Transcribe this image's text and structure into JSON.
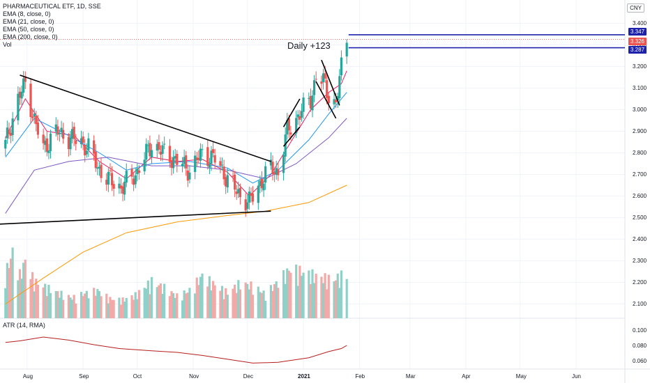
{
  "legend": {
    "title": "PHARMACEUTICAL ETF, 1D, SSE",
    "ema8": "EMA (8, close, 0)",
    "ema21": "EMA (21, close, 0)",
    "ema50": "EMA (50, close, 0)",
    "ema200": "EMA (200, close, 0)",
    "vol": "Vol"
  },
  "atr_label": "ATR (14, RMA)",
  "currency": "CNY",
  "annotation": "Daily +123",
  "price_tags": {
    "upper": "3.347",
    "current": "3.326",
    "lower": "3.287"
  },
  "colors": {
    "up": "#26a69a",
    "down": "#ef5350",
    "ema8": "#e91e63",
    "ema21": "#2196f3",
    "ema50": "#7e57c2",
    "ema200": "#ff9800",
    "atr": "#b71c1c",
    "hline": "#1e22aa"
  },
  "chart_data": {
    "type": "candlestick",
    "price_axis": [
      "3.400",
      "3.300",
      "3.200",
      "3.100",
      "3.000",
      "2.900",
      "2.800",
      "2.700",
      "2.600",
      "2.500",
      "2.400",
      "2.300",
      "2.200",
      "2.100"
    ],
    "atr_axis": [
      "0.100",
      "0.080",
      "0.060"
    ],
    "x_labels": [
      "Aug",
      "Sep",
      "Oct",
      "Nov",
      "Dec",
      "2021",
      "Feb",
      "Mar",
      "Apr",
      "May",
      "Jun"
    ],
    "price_range": [
      2.05,
      3.45
    ],
    "atr_range": [
      0.052,
      0.112
    ],
    "horizontal_levels": [
      3.347,
      3.287
    ],
    "trendlines": [
      {
        "from": [
          "2020-07-28",
          3.16
        ],
        "to": [
          "2020-12-14",
          2.76
        ]
      },
      {
        "from": [
          "2020-07-17",
          2.47
        ],
        "to": [
          "2020-12-14",
          2.53
        ]
      },
      {
        "from": [
          "2020-12-21",
          2.92
        ],
        "to": [
          "2020-12-30",
          3.05
        ]
      },
      {
        "from": [
          "2020-12-21",
          2.83
        ],
        "to": [
          "2020-12-30",
          2.92
        ]
      },
      {
        "from": [
          "2021-01-11",
          3.23
        ],
        "to": [
          "2021-01-21",
          3.02
        ]
      },
      {
        "from": [
          "2021-01-08",
          3.13
        ],
        "to": [
          "2021-01-19",
          2.96
        ]
      }
    ],
    "close_path": [
      [
        "2020-07-20",
        2.84
      ],
      [
        "2020-07-27",
        3.05
      ],
      [
        "2020-07-31",
        3.12
      ],
      [
        "2020-08-05",
        2.95
      ],
      [
        "2020-08-10",
        2.82
      ],
      [
        "2020-08-17",
        2.9
      ],
      [
        "2020-08-24",
        2.87
      ],
      [
        "2020-08-31",
        2.85
      ],
      [
        "2020-09-04",
        2.82
      ],
      [
        "2020-09-10",
        2.72
      ],
      [
        "2020-09-16",
        2.67
      ],
      [
        "2020-09-22",
        2.64
      ],
      [
        "2020-09-30",
        2.7
      ],
      [
        "2020-10-09",
        2.84
      ],
      [
        "2020-10-16",
        2.8
      ],
      [
        "2020-10-23",
        2.76
      ],
      [
        "2020-10-30",
        2.72
      ],
      [
        "2020-11-06",
        2.8
      ],
      [
        "2020-11-13",
        2.77
      ],
      [
        "2020-11-20",
        2.68
      ],
      [
        "2020-11-27",
        2.6
      ],
      [
        "2020-12-02",
        2.57
      ],
      [
        "2020-12-08",
        2.66
      ],
      [
        "2020-12-14",
        2.73
      ],
      [
        "2020-12-18",
        2.71
      ],
      [
        "2020-12-23",
        2.9
      ],
      [
        "2020-12-29",
        2.97
      ],
      [
        "2021-01-05",
        3.05
      ],
      [
        "2021-01-08",
        3.15
      ],
      [
        "2021-01-12",
        3.13
      ],
      [
        "2021-01-15",
        3.07
      ],
      [
        "2021-01-19",
        3.02
      ],
      [
        "2021-01-22",
        3.2
      ],
      [
        "2021-01-25",
        3.326
      ]
    ],
    "ema8": [
      [
        "2020-07-20",
        2.87
      ],
      [
        "2020-07-31",
        3.05
      ],
      [
        "2020-08-12",
        2.9
      ],
      [
        "2020-08-27",
        2.88
      ],
      [
        "2020-09-10",
        2.76
      ],
      [
        "2020-09-25",
        2.68
      ],
      [
        "2020-10-09",
        2.78
      ],
      [
        "2020-10-23",
        2.76
      ],
      [
        "2020-11-06",
        2.77
      ],
      [
        "2020-11-20",
        2.71
      ],
      [
        "2020-12-02",
        2.6
      ],
      [
        "2020-12-14",
        2.7
      ],
      [
        "2020-12-25",
        2.85
      ],
      [
        "2021-01-05",
        3.0
      ],
      [
        "2021-01-15",
        3.08
      ],
      [
        "2021-01-22",
        3.12
      ],
      [
        "2021-01-25",
        3.18
      ]
    ],
    "ema21": [
      [
        "2020-07-20",
        2.78
      ],
      [
        "2020-08-05",
        2.96
      ],
      [
        "2020-08-24",
        2.88
      ],
      [
        "2020-09-10",
        2.8
      ],
      [
        "2020-09-25",
        2.72
      ],
      [
        "2020-10-09",
        2.75
      ],
      [
        "2020-10-30",
        2.76
      ],
      [
        "2020-11-20",
        2.73
      ],
      [
        "2020-12-04",
        2.66
      ],
      [
        "2020-12-18",
        2.72
      ],
      [
        "2021-01-04",
        2.86
      ],
      [
        "2021-01-15",
        2.98
      ],
      [
        "2021-01-25",
        3.08
      ]
    ],
    "ema50": [
      [
        "2020-07-20",
        2.52
      ],
      [
        "2020-08-05",
        2.72
      ],
      [
        "2020-08-24",
        2.76
      ],
      [
        "2020-09-15",
        2.78
      ],
      [
        "2020-10-09",
        2.74
      ],
      [
        "2020-10-30",
        2.74
      ],
      [
        "2020-11-20",
        2.72
      ],
      [
        "2020-12-11",
        2.68
      ],
      [
        "2020-12-28",
        2.75
      ],
      [
        "2021-01-15",
        2.87
      ],
      [
        "2021-01-25",
        2.96
      ]
    ],
    "ema200": [
      [
        "2020-07-20",
        2.1
      ],
      [
        "2020-08-10",
        2.22
      ],
      [
        "2020-09-01",
        2.34
      ],
      [
        "2020-09-25",
        2.43
      ],
      [
        "2020-10-23",
        2.48
      ],
      [
        "2020-11-20",
        2.51
      ],
      [
        "2020-12-11",
        2.53
      ],
      [
        "2021-01-04",
        2.57
      ],
      [
        "2021-01-25",
        2.65
      ]
    ],
    "volume": [
      [
        "2020-07-20",
        0.48
      ],
      [
        "2020-07-24",
        0.71
      ],
      [
        "2020-07-28",
        0.47
      ],
      [
        "2020-07-31",
        0.62
      ],
      [
        "2020-08-05",
        0.4
      ],
      [
        "2020-08-12",
        0.33
      ],
      [
        "2020-08-19",
        0.27
      ],
      [
        "2020-08-26",
        0.22
      ],
      [
        "2020-09-02",
        0.27
      ],
      [
        "2020-09-09",
        0.3
      ],
      [
        "2020-09-16",
        0.21
      ],
      [
        "2020-09-23",
        0.2
      ],
      [
        "2020-09-30",
        0.25
      ],
      [
        "2020-10-09",
        0.4
      ],
      [
        "2020-10-16",
        0.33
      ],
      [
        "2020-10-23",
        0.24
      ],
      [
        "2020-10-30",
        0.3
      ],
      [
        "2020-11-06",
        0.46
      ],
      [
        "2020-11-13",
        0.36
      ],
      [
        "2020-11-20",
        0.28
      ],
      [
        "2020-11-27",
        0.38
      ],
      [
        "2020-12-04",
        0.35
      ],
      [
        "2020-12-11",
        0.26
      ],
      [
        "2020-12-18",
        0.4
      ],
      [
        "2020-12-25",
        0.54
      ],
      [
        "2021-01-04",
        0.48
      ],
      [
        "2021-01-11",
        0.44
      ],
      [
        "2021-01-18",
        0.42
      ],
      [
        "2021-01-25",
        0.49
      ]
    ],
    "atr": [
      [
        "2020-07-20",
        0.085
      ],
      [
        "2020-07-28",
        0.087
      ],
      [
        "2020-08-10",
        0.092
      ],
      [
        "2020-08-24",
        0.088
      ],
      [
        "2020-09-07",
        0.082
      ],
      [
        "2020-09-21",
        0.077
      ],
      [
        "2020-10-09",
        0.074
      ],
      [
        "2020-10-23",
        0.072
      ],
      [
        "2020-11-06",
        0.068
      ],
      [
        "2020-11-20",
        0.063
      ],
      [
        "2020-12-04",
        0.058
      ],
      [
        "2020-12-18",
        0.059
      ],
      [
        "2021-01-04",
        0.065
      ],
      [
        "2021-01-15",
        0.073
      ],
      [
        "2021-01-22",
        0.077
      ],
      [
        "2021-01-25",
        0.081
      ]
    ]
  }
}
